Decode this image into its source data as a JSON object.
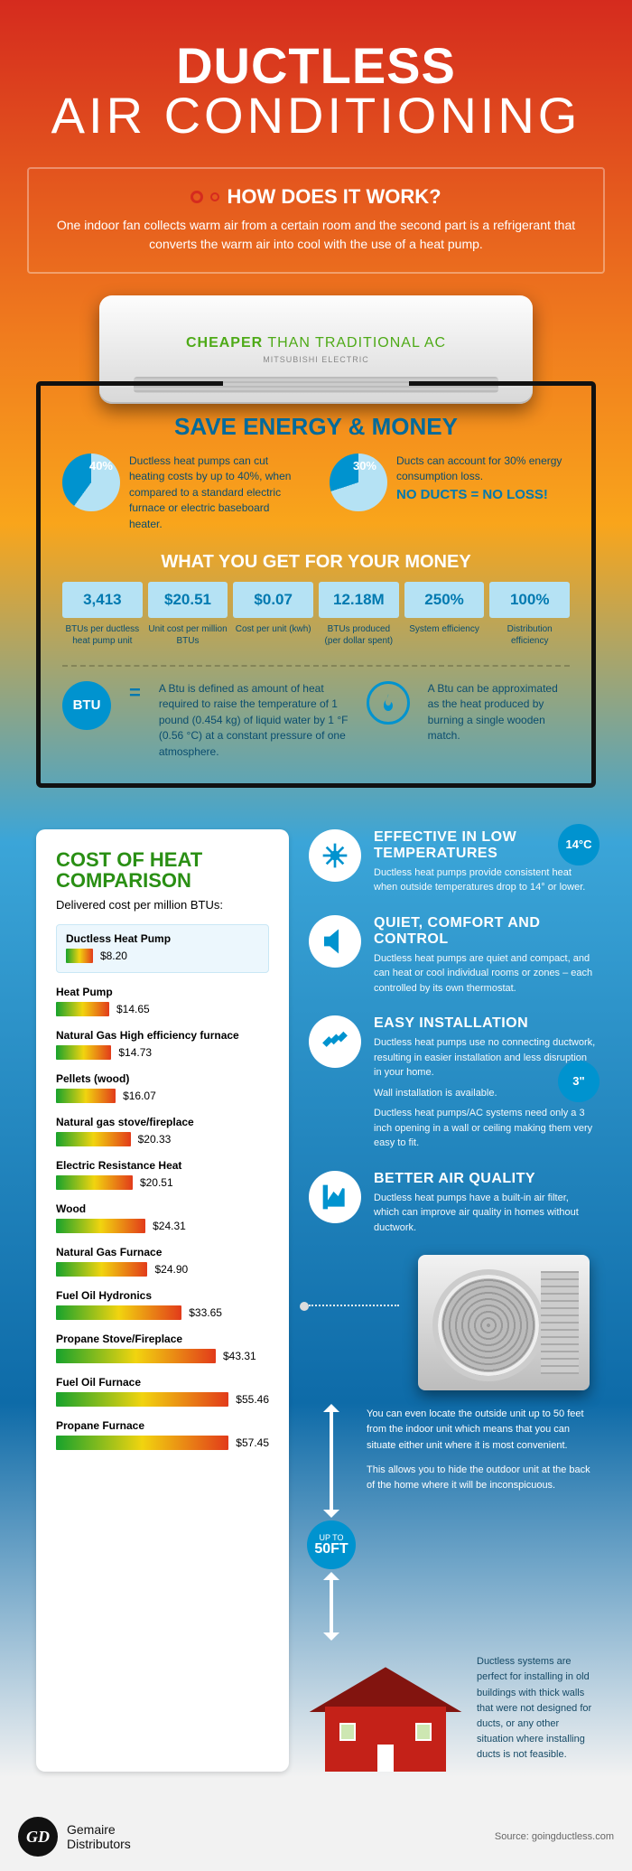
{
  "title_top": "DUCTLESS",
  "title_bottom": "AIR CONDITIONING",
  "how": {
    "heading": "HOW DOES IT WORK?",
    "text": "One indoor fan collects warm air from a certain room and the second part is a refrigerant that converts the warm air into cool with the use of a heat pump."
  },
  "unit": {
    "tagline_bold": "CHEAPER",
    "tagline_rest": " THAN TRADITIONAL AC",
    "brand": "MITSUBISHI ELECTRIC"
  },
  "save": {
    "heading": "SAVE ENERGY & MONEY",
    "left": {
      "pct": "40%",
      "text": "Ductless heat pumps can cut heating costs by up to 40%, when compared to a standard electric furnace or electric baseboard heater."
    },
    "right": {
      "pct": "30%",
      "text": "Ducts can account for 30% energy consumption loss.",
      "callout": "NO DUCTS = NO LOSS!"
    }
  },
  "what_heading": "WHAT YOU GET FOR YOUR MONEY",
  "stats": [
    {
      "v": "3,413",
      "l": "BTUs per ductless heat pump unit"
    },
    {
      "v": "$20.51",
      "l": "Unit cost per million BTUs"
    },
    {
      "v": "$0.07",
      "l": "Cost per unit (kwh)"
    },
    {
      "v": "12.18M",
      "l": "BTUs produced (per dollar spent)"
    },
    {
      "v": "250%",
      "l": "System efficiency"
    },
    {
      "v": "100%",
      "l": "Distribution efficiency"
    }
  ],
  "btu": {
    "label": "BTU",
    "def": "A Btu is defined as amount of heat required to raise the temperature of 1 pound (0.454 kg) of liquid water by 1 °F (0.56 °C) at a constant pressure of one atmosphere.",
    "approx": "A Btu can be approximated as the heat produced by burning a single wooden match."
  },
  "cost": {
    "heading": "COST OF HEAT COMPARISON",
    "sub": "Delivered cost per million BTUs:",
    "highlight": {
      "name": "Ductless Heat Pump",
      "price": "$8.20",
      "bar_pct": 14
    },
    "items": [
      {
        "name": "Heat Pump",
        "price": "$14.65",
        "bar_pct": 25
      },
      {
        "name": "Natural Gas High efficiency furnace",
        "price": "$14.73",
        "bar_pct": 26
      },
      {
        "name": "Pellets (wood)",
        "price": "$16.07",
        "bar_pct": 28
      },
      {
        "name": "Natural gas stove/fireplace",
        "price": "$20.33",
        "bar_pct": 35
      },
      {
        "name": "Electric Resistance Heat",
        "price": "$20.51",
        "bar_pct": 36
      },
      {
        "name": "Wood",
        "price": "$24.31",
        "bar_pct": 42
      },
      {
        "name": "Natural Gas Furnace",
        "price": "$24.90",
        "bar_pct": 43
      },
      {
        "name": "Fuel Oil Hydronics",
        "price": "$33.65",
        "bar_pct": 59
      },
      {
        "name": "Propane Stove/Fireplace",
        "price": "$43.31",
        "bar_pct": 75
      },
      {
        "name": "Fuel Oil Furnace",
        "price": "$55.46",
        "bar_pct": 97
      },
      {
        "name": "Propane Furnace",
        "price": "$57.45",
        "bar_pct": 100
      }
    ]
  },
  "features": {
    "temp_badge": "14°C",
    "three_badge": "3\"",
    "list": [
      {
        "h": "EFFECTIVE IN LOW TEMPERATURES",
        "p": "Ductless heat pumps provide consistent heat when outside temperatures drop to 14° or lower."
      },
      {
        "h": "QUIET, COMFORT AND CONTROL",
        "p": "Ductless heat pumps are quiet and compact, and can heat or cool individual rooms or zones – each controlled by its own thermostat."
      },
      {
        "h": "EASY INSTALLATION",
        "p": "Ductless heat pumps use no connecting ductwork, resulting in easier installation and less disruption in your home.",
        "p2": "Wall installation is available.",
        "p3": "Ductless heat pumps/AC systems need only a 3 inch opening in a wall or ceiling making them very easy to fit."
      },
      {
        "h": "BETTER AIR QUALITY",
        "p": "Ductless heat pumps have a built-in air filter, which can improve air quality in homes without ductwork."
      }
    ]
  },
  "fifty": {
    "label_top": "UP TO",
    "label_big": "50FT",
    "p1": "You can even locate the outside unit up to 50 feet from the indoor unit which means that you can situate either unit where it is most convenient.",
    "p2": "This allows you to hide the outdoor unit at the back of the home where it will be inconspicuous."
  },
  "house_text": "Ductless systems are perfect for installing in old buildings with thick walls that were not designed for ducts, or any other situation where installing ducts is not feasible.",
  "footer": {
    "brand1": "Gemaire",
    "brand2": "Distributors",
    "source": "Source: goingductless.com"
  },
  "colors": {
    "accent": "#0093cf",
    "green": "#2a8f14"
  }
}
